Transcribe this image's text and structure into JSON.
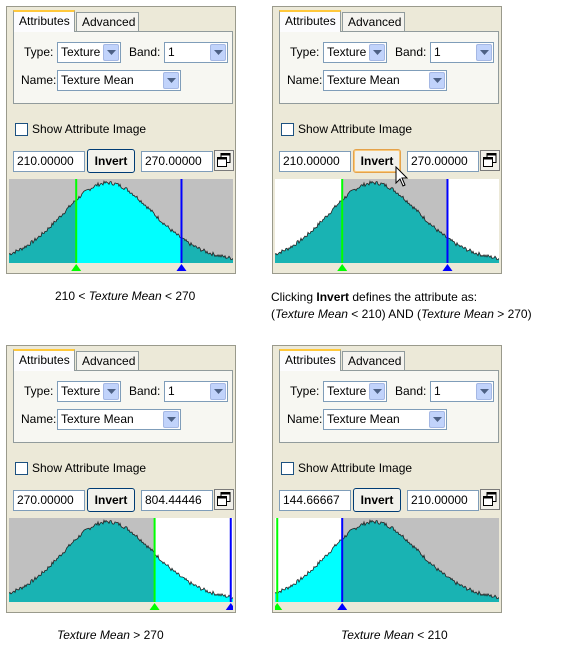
{
  "panels": [
    {
      "tabs": [
        "Attributes",
        "Advanced"
      ],
      "type_label": "Type:",
      "type_value": "Texture",
      "band_label": "Band:",
      "band_value": "1",
      "name_label": "Name:",
      "name_value": "Texture Mean",
      "show_label": "Show Attribute Image",
      "low": "210.00000",
      "invert": "Invert",
      "high": "270.00000",
      "state": "normal",
      "thresholds": [
        0.3,
        0.77
      ]
    },
    {
      "tabs": [
        "Attributes",
        "Advanced"
      ],
      "type_label": "Type:",
      "type_value": "Texture",
      "band_label": "Band:",
      "band_value": "1",
      "name_label": "Name:",
      "name_value": "Texture Mean",
      "show_label": "Show Attribute Image",
      "low": "210.00000",
      "invert": "Invert",
      "high": "270.00000",
      "state": "inverted",
      "thresholds": [
        0.3,
        0.77
      ]
    },
    {
      "tabs": [
        "Attributes",
        "Advanced"
      ],
      "type_label": "Type:",
      "type_value": "Texture",
      "band_label": "Band:",
      "band_value": "1",
      "name_label": "Name:",
      "name_value": "Texture Mean",
      "show_label": "Show Attribute Image",
      "low": "270.00000",
      "invert": "Invert",
      "high": "804.44446",
      "state": "above",
      "thresholds": [
        0.65,
        0.99
      ]
    },
    {
      "tabs": [
        "Attributes",
        "Advanced"
      ],
      "type_label": "Type:",
      "type_value": "Texture",
      "band_label": "Band:",
      "band_value": "1",
      "name_label": "Name:",
      "name_value": "Texture Mean",
      "show_label": "Show Attribute Image",
      "low": "144.66667",
      "invert": "Invert",
      "high": "210.00000",
      "state": "below",
      "thresholds": [
        0.01,
        0.3
      ]
    }
  ],
  "captions": {
    "c1": {
      "a": "210 < ",
      "b": "Texture Mean",
      "c": " < 270"
    },
    "c2": {
      "l1a": "Clicking ",
      "l1b": "Invert",
      "l1c": " defines the attribute as:",
      "l2a": "(",
      "l2b": "Texture Mean",
      "l2c": " < 210) AND (",
      "l2d": "Texture Mean",
      "l2e": " > 270)"
    },
    "c3": {
      "a": "Texture Mean",
      "b": " > 270"
    },
    "c4": {
      "a": "Texture Mean",
      "b": " < 210"
    }
  },
  "colors": {
    "cyan": "#00ffff",
    "teal": "#19b3b3",
    "gray": "#c0c0c0",
    "green": "#00ff00",
    "blue": "#0000ff"
  }
}
